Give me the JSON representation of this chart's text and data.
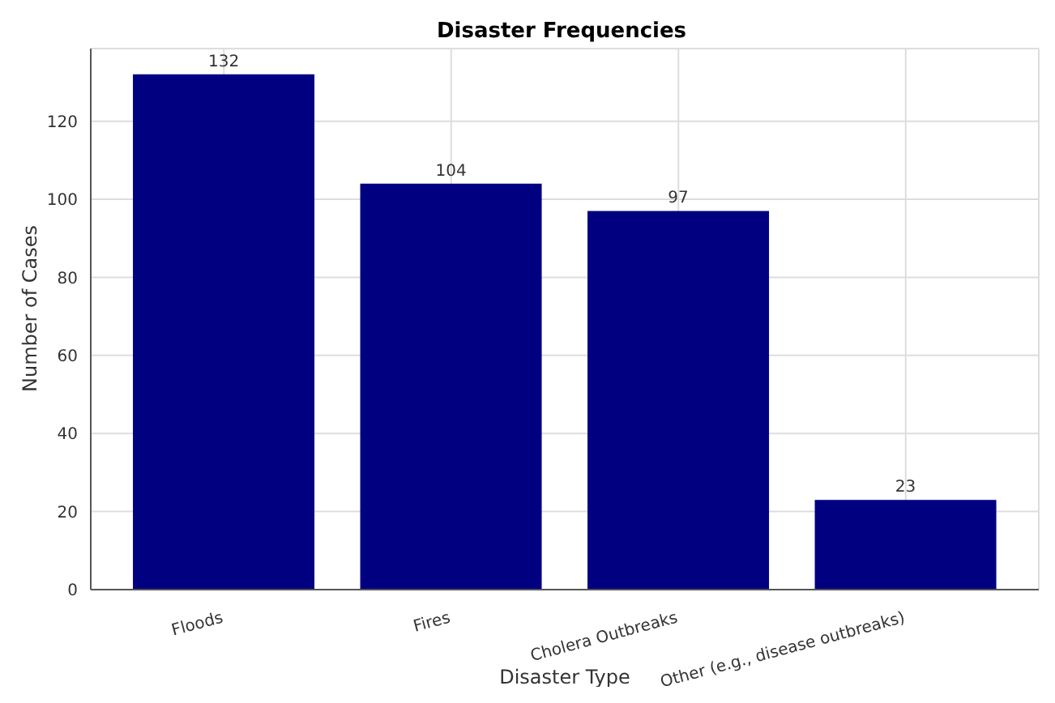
{
  "chart_data": {
    "type": "bar",
    "title": "Disaster Frequencies",
    "xlabel": "Disaster Type",
    "ylabel": "Number of Cases",
    "categories": [
      "Floods",
      "Fires",
      "Cholera Outbreaks",
      "Other (e.g., disease outbreaks)"
    ],
    "values": [
      132,
      104,
      97,
      23
    ],
    "color": "#000080",
    "ylim": [
      0,
      138.6
    ],
    "yticks": [
      0,
      20,
      40,
      60,
      80,
      100,
      120
    ],
    "grid": true,
    "data_labels": true
  }
}
